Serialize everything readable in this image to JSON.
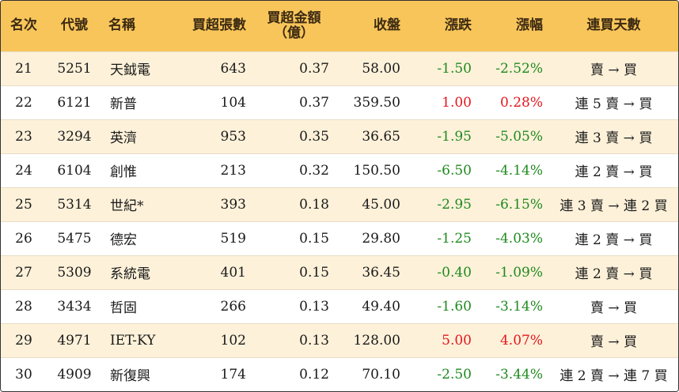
{
  "headers": {
    "rank": "名次",
    "code": "代號",
    "name": "名稱",
    "volume": "買超張數",
    "amount_line1": "買超金額",
    "amount_line2": "（億）",
    "close": "收盤",
    "change": "漲跌",
    "pct": "漲幅",
    "days": "連買天數"
  },
  "colors": {
    "header_bg": "#f8c55a",
    "odd_row_bg": "#fdf1d9",
    "up": "#e5161d",
    "down": "#1f8a1f"
  },
  "rows": [
    {
      "rank": "21",
      "code": "5251",
      "name": "天鉞電",
      "volume": "643",
      "amount": "0.37",
      "close": "58.00",
      "change": "-1.50",
      "pct": "-2.52%",
      "dir": "down",
      "days": "賣 → 買"
    },
    {
      "rank": "22",
      "code": "6121",
      "name": "新普",
      "volume": "104",
      "amount": "0.37",
      "close": "359.50",
      "change": "1.00",
      "pct": "0.28%",
      "dir": "up",
      "days": "連 5 賣 → 買"
    },
    {
      "rank": "23",
      "code": "3294",
      "name": "英濟",
      "volume": "953",
      "amount": "0.35",
      "close": "36.65",
      "change": "-1.95",
      "pct": "-5.05%",
      "dir": "down",
      "days": "連 3 賣 → 買"
    },
    {
      "rank": "24",
      "code": "6104",
      "name": "創惟",
      "volume": "213",
      "amount": "0.32",
      "close": "150.50",
      "change": "-6.50",
      "pct": "-4.14%",
      "dir": "down",
      "days": "連 2 賣 → 買"
    },
    {
      "rank": "25",
      "code": "5314",
      "name": "世紀*",
      "volume": "393",
      "amount": "0.18",
      "close": "45.00",
      "change": "-2.95",
      "pct": "-6.15%",
      "dir": "down",
      "days": "連 3 賣 → 連 2 買"
    },
    {
      "rank": "26",
      "code": "5475",
      "name": "德宏",
      "volume": "519",
      "amount": "0.15",
      "close": "29.80",
      "change": "-1.25",
      "pct": "-4.03%",
      "dir": "down",
      "days": "連 2 賣 → 買"
    },
    {
      "rank": "27",
      "code": "5309",
      "name": "系統電",
      "volume": "401",
      "amount": "0.15",
      "close": "36.45",
      "change": "-0.40",
      "pct": "-1.09%",
      "dir": "down",
      "days": "連 2 賣 → 買"
    },
    {
      "rank": "28",
      "code": "3434",
      "name": "哲固",
      "volume": "266",
      "amount": "0.13",
      "close": "49.40",
      "change": "-1.60",
      "pct": "-3.14%",
      "dir": "down",
      "days": "賣 → 買"
    },
    {
      "rank": "29",
      "code": "4971",
      "name": "IET-KY",
      "volume": "102",
      "amount": "0.13",
      "close": "128.00",
      "change": "5.00",
      "pct": "4.07%",
      "dir": "up",
      "days": "賣 → 買"
    },
    {
      "rank": "30",
      "code": "4909",
      "name": "新復興",
      "volume": "174",
      "amount": "0.12",
      "close": "70.10",
      "change": "-2.50",
      "pct": "-3.44%",
      "dir": "down",
      "days": "連 2 賣 → 連 7 買"
    }
  ]
}
